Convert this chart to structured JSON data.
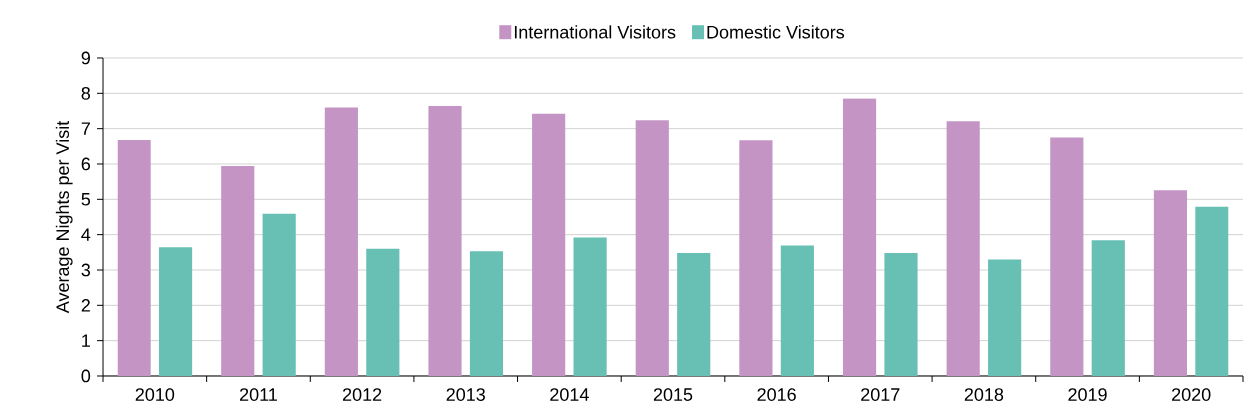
{
  "chart_data": {
    "type": "bar",
    "ylabel": "Average Nights per Visit",
    "categories": [
      "2010",
      "2011",
      "2012",
      "2013",
      "2014",
      "2015",
      "2016",
      "2017",
      "2018",
      "2019",
      "2020"
    ],
    "series": [
      {
        "name": "International Visitors",
        "color": "#c495c4",
        "values": [
          6.68,
          5.94,
          7.6,
          7.64,
          7.42,
          7.24,
          6.67,
          7.85,
          7.21,
          6.75,
          5.26
        ]
      },
      {
        "name": "Domestic Visitors",
        "color": "#68c0b4",
        "values": [
          3.64,
          4.59,
          3.6,
          3.53,
          3.92,
          3.48,
          3.69,
          3.48,
          3.3,
          3.84,
          4.79
        ]
      }
    ],
    "ylim": [
      0,
      9
    ],
    "yticks": [
      0,
      1,
      2,
      3,
      4,
      5,
      6,
      7,
      8,
      9
    ],
    "grid": "y",
    "legend": "top"
  }
}
